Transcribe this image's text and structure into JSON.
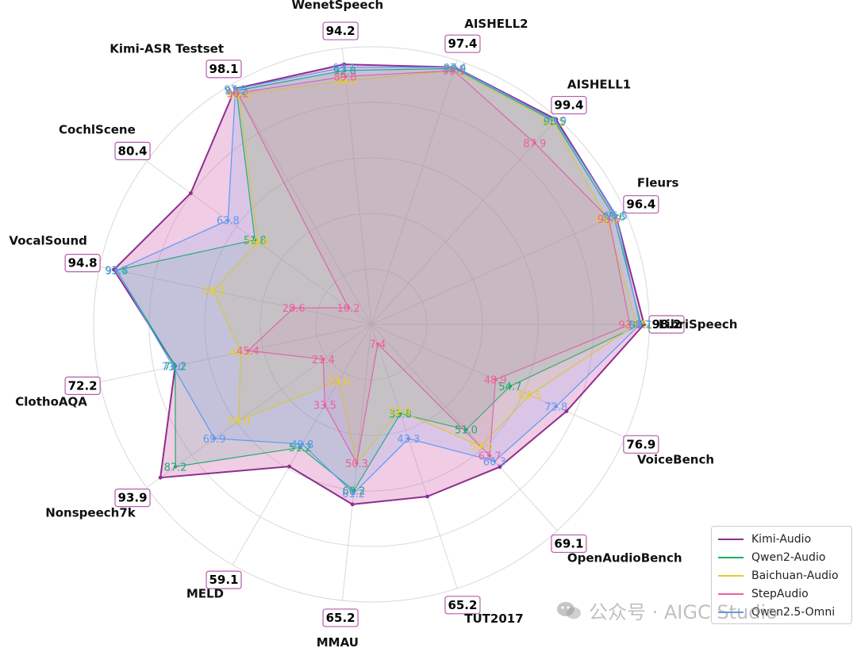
{
  "chart_data": {
    "type": "radar",
    "axes": [
      "LibriSpeech",
      "AISHELL1",
      "WenetSpeech",
      "CochlScene",
      "ClothoAQA",
      "MELD",
      "TUT2017",
      "VoiceBench",
      "Fleurs",
      "AISHELL2",
      "Kimi-ASR Testset",
      "VocalSound",
      "Nonspeech7k",
      "MMAU",
      "OpenAudioBench"
    ],
    "axis_order_clockwise_from_right": [
      "LibriSpeech",
      "VoiceBench",
      "OpenAudioBench",
      "TUT2017",
      "MMAU",
      "MELD",
      "Nonspeech7k",
      "ClothoAQA",
      "VocalSound",
      "CochlScene",
      "Kimi-ASR Testset",
      "WenetSpeech",
      "AISHELL2",
      "AISHELL1",
      "Fleurs"
    ],
    "series": [
      {
        "name": "Kimi-Audio",
        "color": "#8e2f8e",
        "fill": "#d46cb5",
        "values": {
          "LibriSpeech": 98.2,
          "VoiceBench": 76.9,
          "OpenAudioBench": 69.1,
          "TUT2017": 65.2,
          "MMAU": 65.2,
          "MELD": 59.1,
          "Nonspeech7k": 93.9,
          "ClothoAQA": 72.2,
          "VocalSound": 94.8,
          "CochlScene": 80.4,
          "Kimi-ASR Testset": 98.1,
          "WenetSpeech": 94.2,
          "AISHELL2": 97.4,
          "AISHELL1": 99.4,
          "Fleurs": 96.4
        }
      },
      {
        "name": "Qwen2-Audio",
        "color": "#1aad6d",
        "fill": "#1aad6d",
        "values": {
          "LibriSpeech": 97.1,
          "VoiceBench": 54.7,
          "OpenAudioBench": 51.0,
          "TUT2017": 33.8,
          "MMAU": 60.2,
          "MELD": 51.2,
          "Nonspeech7k": 87.2,
          "ClothoAQA": 72.2,
          "VocalSound": 93.8,
          "CochlScene": 51.8,
          "Kimi-ASR Testset": 97.2,
          "WenetSpeech": 92.0,
          "AISHELL2": 96.9,
          "AISHELL1": 98.5,
          "Fleurs": 95.6
        }
      },
      {
        "name": "Baichuan-Audio",
        "color": "#e8cd2a",
        "fill": "#e8cd2a",
        "values": {
          "LibriSpeech": 95.5,
          "VoiceBench": 62.5,
          "OpenAudioBench": 59.0,
          "TUT2017": 32.9,
          "MMAU": 50.3,
          "MELD": 23.6,
          "Nonspeech7k": 59.0,
          "ClothoAQA": 48.1,
          "VocalSound": 58.2,
          "CochlScene": 50.6,
          "Kimi-ASR Testset": 95.5,
          "WenetSpeech": 88.3,
          "AISHELL2": 96.1,
          "AISHELL1": 98.1,
          "Fleurs": 92.9
        }
      },
      {
        "name": "StepAudio",
        "color": "#ee5fa0",
        "fill": "#ee5fa0",
        "values": {
          "LibriSpeech": 93.1,
          "VoiceBench": 48.9,
          "OpenAudioBench": 63.7,
          "TUT2017": 7.4,
          "MMAU": 50.3,
          "MELD": 33.5,
          "Nonspeech7k": 21.4,
          "ClothoAQA": 45.4,
          "VocalSound": 28.6,
          "CochlScene": 10.2,
          "Kimi-ASR Testset": 96.2,
          "WenetSpeech": 89.8,
          "AISHELL2": 96.1,
          "AISHELL1": 87.9,
          "Fleurs": 93.6
        }
      },
      {
        "name": "Qwen2.5-Omni",
        "color": "#5b9af5",
        "fill": "#5b9af5",
        "values": {
          "LibriSpeech": 96.7,
          "VoiceBench": 72.8,
          "OpenAudioBench": 66.3,
          "TUT2017": 43.3,
          "MMAU": 61.2,
          "MELD": 49.8,
          "Nonspeech7k": 69.9,
          "ClothoAQA": 73.0,
          "VocalSound": 93.7,
          "CochlScene": 63.8,
          "Kimi-ASR Testset": 97.9,
          "WenetSpeech": 93.1,
          "AISHELL2": 97.4,
          "AISHELL1": 98.9,
          "Fleurs": 96.5
        }
      }
    ],
    "legend_position": "bottom-right",
    "grid": true
  },
  "watermark": {
    "text": "公众号 · AIGC Studio",
    "icon": "wechat-icon"
  }
}
